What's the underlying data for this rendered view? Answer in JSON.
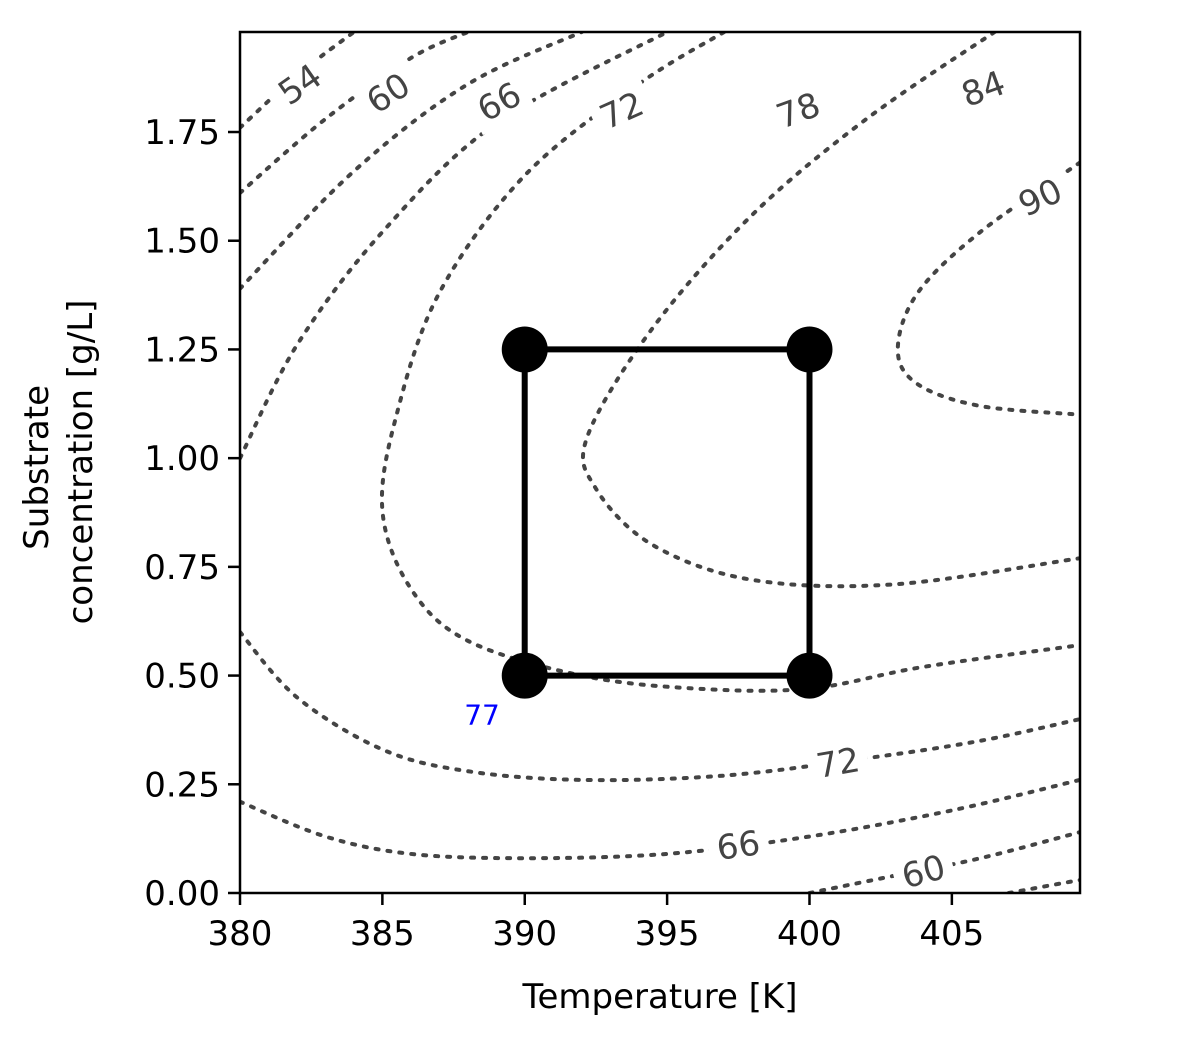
{
  "chart_data": {
    "type": "contour",
    "title": "",
    "xlabel": "Temperature [K]",
    "ylabel_lines": [
      "Substrate",
      "concentration [g/L]"
    ],
    "xlim": [
      380,
      409.5
    ],
    "ylim": [
      0,
      1.98
    ],
    "xticks": [
      380,
      385,
      390,
      395,
      400,
      405
    ],
    "xtick_labels": [
      "380",
      "385",
      "390",
      "395",
      "400",
      "405"
    ],
    "yticks": [
      0,
      0.25,
      0.5,
      0.75,
      1.0,
      1.25,
      1.5,
      1.75
    ],
    "ytick_labels": [
      "0.00",
      "0.25",
      "0.50",
      "0.75",
      "1.00",
      "1.25",
      "1.50",
      "1.75"
    ],
    "grid": false,
    "contour_style": "dotted",
    "contour_color": "#444444",
    "contours": [
      {
        "level": 54,
        "label": "54",
        "points": [
          [
            380,
            1.76
          ],
          [
            382,
            1.88
          ],
          [
            384,
            1.98
          ]
        ]
      },
      {
        "level": 60,
        "label": "60",
        "points": [
          [
            380,
            1.61
          ],
          [
            383,
            1.78
          ],
          [
            386,
            1.92
          ],
          [
            388,
            1.98
          ]
        ]
      },
      {
        "level": 66,
        "label": "66",
        "points": [
          [
            380,
            1.39
          ],
          [
            384,
            1.66
          ],
          [
            388,
            1.86
          ],
          [
            392,
            1.98
          ]
        ]
      },
      {
        "level": 72,
        "label": "72",
        "points": [
          [
            380,
            1.0
          ],
          [
            382,
            1.26
          ],
          [
            385,
            1.52
          ],
          [
            389,
            1.77
          ],
          [
            395,
            1.98
          ]
        ]
      },
      {
        "level": 78,
        "label": "78",
        "points": [
          [
            397,
            1.98
          ],
          [
            394,
            1.86
          ],
          [
            390,
            1.65
          ],
          [
            387,
            1.38
          ],
          [
            385.5,
            1.1
          ],
          [
            385,
            0.88
          ],
          [
            386,
            0.7
          ],
          [
            388,
            0.58
          ],
          [
            392,
            0.5
          ],
          [
            396,
            0.47
          ],
          [
            400,
            0.47
          ],
          [
            404,
            0.52
          ],
          [
            409.5,
            0.57
          ]
        ]
      },
      {
        "level": 84,
        "label": "84",
        "points": [
          [
            406.5,
            1.98
          ],
          [
            402,
            1.78
          ],
          [
            398,
            1.56
          ],
          [
            394.5,
            1.3
          ],
          [
            392.2,
            1.05
          ],
          [
            392.5,
            0.93
          ],
          [
            394.5,
            0.8
          ],
          [
            398,
            0.72
          ],
          [
            403,
            0.71
          ],
          [
            409.5,
            0.77
          ]
        ]
      },
      {
        "level": 90,
        "label": "90",
        "points": [
          [
            409.5,
            1.68
          ],
          [
            406,
            1.52
          ],
          [
            403.8,
            1.38
          ],
          [
            403.1,
            1.25
          ],
          [
            403.8,
            1.17
          ],
          [
            406,
            1.12
          ],
          [
            409.5,
            1.1
          ]
        ]
      },
      {
        "level": 72,
        "label": "72",
        "points": [
          [
            380,
            0.6
          ],
          [
            382,
            0.45
          ],
          [
            385,
            0.33
          ],
          [
            388,
            0.28
          ],
          [
            392,
            0.26
          ],
          [
            397,
            0.27
          ],
          [
            402,
            0.31
          ],
          [
            406,
            0.35
          ],
          [
            409.5,
            0.4
          ]
        ]
      },
      {
        "level": 66,
        "label": "66",
        "points": [
          [
            380,
            0.21
          ],
          [
            383,
            0.13
          ],
          [
            386,
            0.09
          ],
          [
            390,
            0.08
          ],
          [
            395,
            0.09
          ],
          [
            400,
            0.13
          ],
          [
            405,
            0.19
          ],
          [
            409.5,
            0.26
          ]
        ]
      },
      {
        "level": 60,
        "label": "60",
        "points": [
          [
            400,
            0.0
          ],
          [
            403,
            0.04
          ],
          [
            406,
            0.08
          ],
          [
            409.5,
            0.14
          ]
        ]
      },
      {
        "level": 54,
        "label": "",
        "points": [
          [
            407,
            0.0
          ],
          [
            409.5,
            0.03
          ]
        ]
      }
    ],
    "contour_labels": [
      {
        "text": "54",
        "x": 382.1,
        "y": 1.86,
        "angle": -35
      },
      {
        "text": "60",
        "x": 385.2,
        "y": 1.84,
        "angle": -33
      },
      {
        "text": "66",
        "x": 389.1,
        "y": 1.82,
        "angle": -28
      },
      {
        "text": "72",
        "x": 393.4,
        "y": 1.8,
        "angle": -24
      },
      {
        "text": "78",
        "x": 399.6,
        "y": 1.8,
        "angle": -20
      },
      {
        "text": "84",
        "x": 406.1,
        "y": 1.85,
        "angle": -20
      },
      {
        "text": "90",
        "x": 408.1,
        "y": 1.6,
        "angle": -25
      },
      {
        "text": "72",
        "x": 401.0,
        "y": 0.3,
        "angle": -10
      },
      {
        "text": "66",
        "x": 397.5,
        "y": 0.11,
        "angle": -8
      },
      {
        "text": "60",
        "x": 404.0,
        "y": 0.05,
        "angle": -15
      }
    ],
    "rectangle": {
      "x": [
        390,
        400,
        400,
        390,
        390
      ],
      "y": [
        0.5,
        0.5,
        1.25,
        1.25,
        0.5
      ]
    },
    "points": [
      {
        "x": 390,
        "y": 1.25
      },
      {
        "x": 400,
        "y": 1.25
      },
      {
        "x": 390,
        "y": 0.5
      },
      {
        "x": 400,
        "y": 0.5
      }
    ],
    "point_annotations": [
      {
        "text": "77",
        "x": 388.5,
        "y": 0.41,
        "color": "#0000ff"
      }
    ]
  }
}
